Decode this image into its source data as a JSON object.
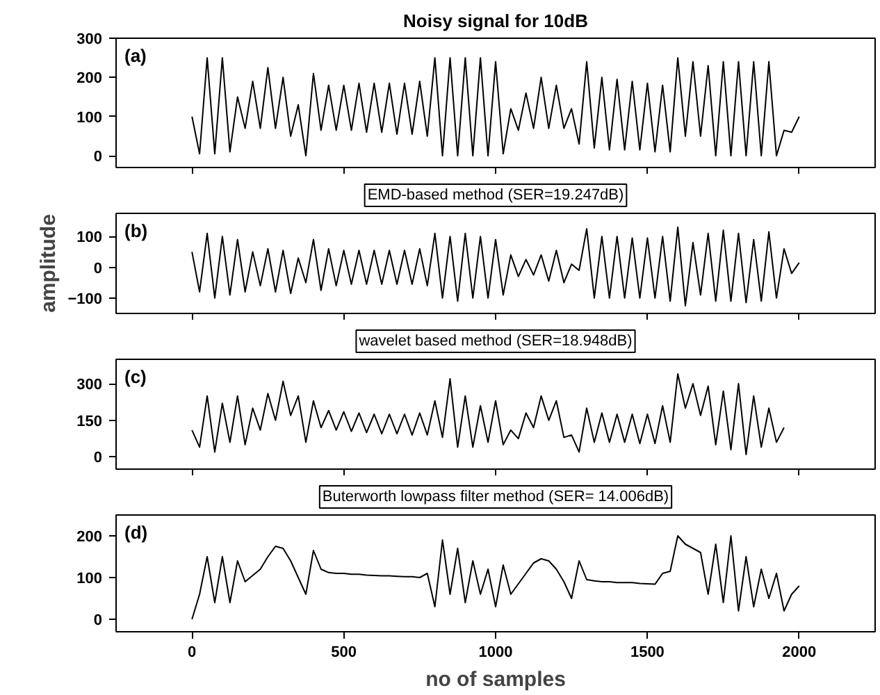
{
  "chart_data": [
    {
      "type": "line",
      "title": "Noisy signal for 10dB",
      "annotations": [
        "(a)"
      ],
      "xlim": [
        -250,
        2250
      ],
      "xticks": [
        0,
        500,
        1000,
        1500,
        2000
      ],
      "ylim": [
        -30,
        300
      ],
      "yticks": [
        0,
        100,
        200,
        300
      ],
      "tick_labels": "y",
      "grid": false,
      "marker": "none",
      "line_style": "solid",
      "x": [
        0,
        25,
        50,
        75,
        100,
        125,
        150,
        175,
        200,
        225,
        250,
        275,
        300,
        325,
        350,
        375,
        400,
        425,
        450,
        475,
        500,
        525,
        550,
        575,
        600,
        625,
        650,
        675,
        700,
        725,
        750,
        775,
        800,
        825,
        850,
        875,
        900,
        925,
        950,
        975,
        1000,
        1025,
        1050,
        1075,
        1100,
        1125,
        1150,
        1175,
        1200,
        1225,
        1250,
        1275,
        1300,
        1325,
        1350,
        1375,
        1400,
        1425,
        1450,
        1475,
        1500,
        1525,
        1550,
        1575,
        1600,
        1625,
        1650,
        1675,
        1700,
        1725,
        1750,
        1775,
        1800,
        1825,
        1850,
        1875,
        1900,
        1925,
        1950,
        1975,
        2000
      ],
      "series": [
        {
          "color": "#000000",
          "values": [
            100,
            5,
            250,
            5,
            250,
            10,
            150,
            70,
            190,
            70,
            225,
            70,
            200,
            50,
            130,
            0,
            210,
            65,
            180,
            65,
            180,
            65,
            185,
            60,
            185,
            60,
            185,
            55,
            185,
            55,
            190,
            50,
            250,
            0,
            250,
            0,
            250,
            0,
            250,
            0,
            240,
            5,
            120,
            65,
            160,
            70,
            200,
            70,
            180,
            70,
            120,
            30,
            240,
            20,
            200,
            15,
            195,
            15,
            190,
            15,
            185,
            10,
            180,
            10,
            250,
            50,
            240,
            50,
            230,
            0,
            240,
            0,
            240,
            0,
            240,
            0,
            240,
            0,
            65,
            60,
            100
          ]
        }
      ]
    },
    {
      "type": "line",
      "title": "EMD-based method (SER=19.247dB)",
      "annotations": [
        "(b)"
      ],
      "ylabel": "amplitude",
      "xlim": [
        -250,
        2250
      ],
      "xticks": [
        0,
        500,
        1000,
        1500,
        2000
      ],
      "ylim": [
        -150,
        175
      ],
      "yticks": [
        -100,
        0,
        100
      ],
      "tick_labels": "y",
      "grid": false,
      "marker": "none",
      "line_style": "solid",
      "x": [
        0,
        25,
        50,
        75,
        100,
        125,
        150,
        175,
        200,
        225,
        250,
        275,
        300,
        325,
        350,
        375,
        400,
        425,
        450,
        475,
        500,
        525,
        550,
        575,
        600,
        625,
        650,
        675,
        700,
        725,
        750,
        775,
        800,
        825,
        850,
        875,
        900,
        925,
        950,
        975,
        1000,
        1025,
        1050,
        1075,
        1100,
        1125,
        1150,
        1175,
        1200,
        1225,
        1250,
        1275,
        1300,
        1325,
        1350,
        1375,
        1400,
        1425,
        1450,
        1475,
        1500,
        1525,
        1550,
        1575,
        1600,
        1625,
        1650,
        1675,
        1700,
        1725,
        1750,
        1775,
        1800,
        1825,
        1850,
        1875,
        1900,
        1925,
        1950,
        1975,
        2000
      ],
      "series": [
        {
          "color": "#000000",
          "values": [
            50,
            -80,
            110,
            -100,
            100,
            -90,
            90,
            -80,
            50,
            -60,
            60,
            -80,
            55,
            -85,
            30,
            -50,
            90,
            -75,
            60,
            -60,
            55,
            -55,
            55,
            -55,
            55,
            -55,
            55,
            -55,
            55,
            -55,
            60,
            -60,
            110,
            -100,
            100,
            -110,
            110,
            -100,
            100,
            -100,
            90,
            -90,
            40,
            -30,
            25,
            -25,
            40,
            -45,
            55,
            -50,
            10,
            -10,
            125,
            -100,
            100,
            -100,
            100,
            -100,
            95,
            -100,
            95,
            -100,
            100,
            -110,
            130,
            -125,
            80,
            -90,
            110,
            -110,
            120,
            -110,
            110,
            -115,
            90,
            -110,
            115,
            -100,
            60,
            -20,
            15
          ]
        }
      ]
    },
    {
      "type": "line",
      "title": "wavelet based method (SER=18.948dB)",
      "annotations": [
        "(c)"
      ],
      "xlim": [
        -250,
        2250
      ],
      "xticks": [
        0,
        500,
        1000,
        1500,
        2000
      ],
      "ylim": [
        -50,
        400
      ],
      "yticks": [
        0,
        150,
        300
      ],
      "tick_labels": "y",
      "grid": false,
      "marker": "none",
      "line_style": "solid",
      "x": [
        0,
        25,
        50,
        75,
        100,
        125,
        150,
        175,
        200,
        225,
        250,
        275,
        300,
        325,
        350,
        375,
        400,
        425,
        450,
        475,
        500,
        525,
        550,
        575,
        600,
        625,
        650,
        675,
        700,
        725,
        750,
        775,
        800,
        825,
        850,
        875,
        900,
        925,
        950,
        975,
        1000,
        1025,
        1050,
        1075,
        1100,
        1125,
        1150,
        1175,
        1200,
        1225,
        1250,
        1275,
        1300,
        1325,
        1350,
        1375,
        1400,
        1425,
        1450,
        1475,
        1500,
        1525,
        1550,
        1575,
        1600,
        1625,
        1650,
        1675,
        1700,
        1725,
        1750,
        1775,
        1800,
        1825,
        1850,
        1875,
        1900,
        1925,
        1950
      ],
      "series": [
        {
          "color": "#000000",
          "values": [
            110,
            40,
            250,
            20,
            220,
            60,
            250,
            50,
            200,
            110,
            260,
            150,
            310,
            170,
            250,
            60,
            230,
            120,
            190,
            110,
            185,
            105,
            180,
            100,
            175,
            95,
            175,
            95,
            175,
            90,
            180,
            90,
            230,
            80,
            320,
            40,
            250,
            40,
            210,
            60,
            230,
            50,
            110,
            75,
            180,
            120,
            250,
            150,
            230,
            80,
            90,
            20,
            200,
            60,
            180,
            60,
            175,
            60,
            175,
            55,
            175,
            55,
            210,
            60,
            340,
            200,
            300,
            170,
            290,
            50,
            270,
            30,
            300,
            10,
            250,
            40,
            200,
            60,
            120
          ]
        }
      ]
    },
    {
      "type": "line",
      "title": "Buterworth lowpass filter method (SER= 14.006dB)",
      "annotations": [
        "(d)"
      ],
      "xlabel": "no of samples",
      "xlim": [
        -250,
        2250
      ],
      "xticks": [
        0,
        500,
        1000,
        1500,
        2000
      ],
      "ylim": [
        -30,
        250
      ],
      "yticks": [
        0,
        100,
        200
      ],
      "grid": false,
      "marker": "none",
      "line_style": "solid",
      "x": [
        0,
        25,
        50,
        75,
        100,
        125,
        150,
        175,
        200,
        225,
        250,
        275,
        300,
        325,
        350,
        375,
        400,
        425,
        450,
        475,
        500,
        525,
        550,
        575,
        600,
        625,
        650,
        675,
        700,
        725,
        750,
        775,
        800,
        825,
        850,
        875,
        900,
        925,
        950,
        975,
        1000,
        1025,
        1050,
        1075,
        1100,
        1125,
        1150,
        1175,
        1200,
        1225,
        1250,
        1275,
        1300,
        1325,
        1350,
        1375,
        1400,
        1425,
        1450,
        1475,
        1500,
        1525,
        1550,
        1575,
        1600,
        1625,
        1650,
        1675,
        1700,
        1725,
        1750,
        1775,
        1800,
        1825,
        1850,
        1875,
        1900,
        1925,
        1950,
        1975,
        2000
      ],
      "series": [
        {
          "color": "#000000",
          "values": [
            0,
            60,
            150,
            40,
            150,
            40,
            140,
            90,
            105,
            120,
            150,
            175,
            170,
            140,
            100,
            60,
            165,
            120,
            112,
            110,
            110,
            108,
            108,
            106,
            105,
            104,
            104,
            103,
            102,
            102,
            100,
            110,
            30,
            190,
            60,
            170,
            40,
            140,
            60,
            120,
            30,
            130,
            60,
            85,
            110,
            135,
            145,
            140,
            120,
            90,
            50,
            140,
            95,
            92,
            90,
            90,
            88,
            88,
            88,
            86,
            85,
            84,
            110,
            115,
            200,
            180,
            170,
            160,
            60,
            180,
            40,
            200,
            20,
            150,
            30,
            120,
            50,
            110,
            20,
            60,
            80
          ]
        }
      ]
    }
  ]
}
